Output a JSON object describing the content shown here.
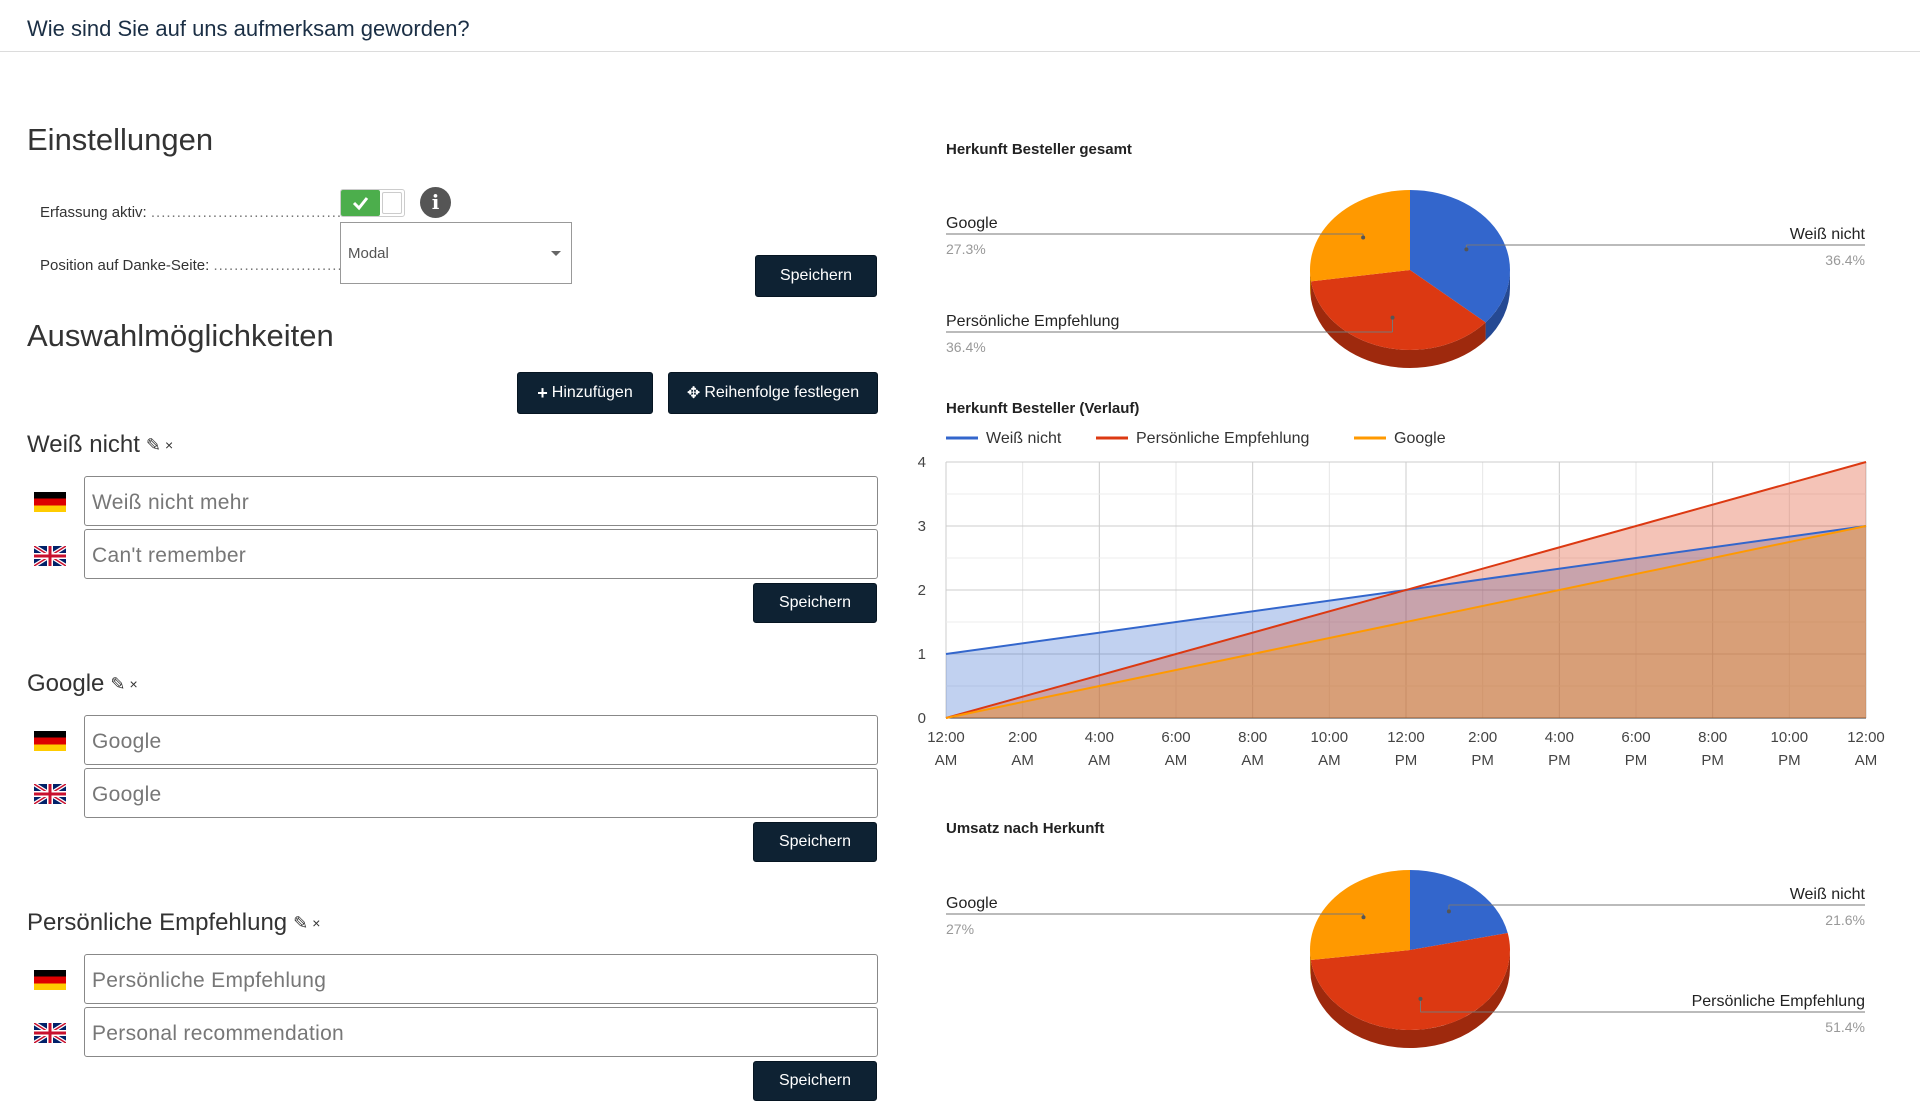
{
  "page": {
    "title": "Wie sind Sie auf uns aufmerksam geworden?"
  },
  "settings": {
    "heading": "Einstellungen",
    "capture_label": "Erfassung aktiv:",
    "capture_active": true,
    "position_label": "Position auf Danke-Seite:",
    "position_value": "Modal",
    "save_label": "Speichern"
  },
  "options": {
    "heading": "Auswahlmöglichkeiten",
    "add_label": "Hinzufügen",
    "order_label": "Reihenfolge festlegen",
    "items": [
      {
        "name": "Weiß nicht",
        "de": "Weiß nicht mehr",
        "en": "Can't remember",
        "save": "Speichern"
      },
      {
        "name": "Google",
        "de": "Google",
        "en": "Google",
        "save": "Speichern"
      },
      {
        "name": "Persönliche Empfehlung",
        "de": "Persönliche Empfehlung",
        "en": "Personal recommendation",
        "save": "Speichern"
      }
    ]
  },
  "icons": {
    "toggle": "check-icon",
    "info": "info-icon",
    "caret": "chevron-down-icon",
    "edit": "edit-icon",
    "remove": "close-icon",
    "add": "plus-icon",
    "move": "move-icon",
    "flag_de": "flag-germany-icon",
    "flag_en": "flag-uk-icon"
  },
  "colors": {
    "blue": "#3366cc",
    "red": "#dc3912",
    "orange": "#ff9900",
    "dark_button": "#0e2233",
    "toggle_green": "#4cae4c"
  },
  "chart_data": [
    {
      "type": "pie",
      "title": "Herkunft Besteller gesamt",
      "labels": [
        "Weiß nicht",
        "Persönliche Empfehlung",
        "Google"
      ],
      "values": [
        36.4,
        36.4,
        27.3
      ],
      "value_labels": [
        "36.4%",
        "36.4%",
        "27.3%"
      ],
      "colors": [
        "#3366cc",
        "#dc3912",
        "#ff9900"
      ]
    },
    {
      "type": "area",
      "title": "Herkunft Besteller (Verlauf)",
      "x": [
        "12:00 AM",
        "2:00 AM",
        "4:00 AM",
        "6:00 AM",
        "8:00 AM",
        "10:00 AM",
        "12:00 PM",
        "2:00 PM",
        "4:00 PM",
        "6:00 PM",
        "8:00 PM",
        "10:00 PM",
        "12:00 AM"
      ],
      "x_tick_lines": [
        [
          "12:00",
          "AM"
        ],
        [
          "2:00",
          "AM"
        ],
        [
          "4:00",
          "AM"
        ],
        [
          "6:00",
          "AM"
        ],
        [
          "8:00",
          "AM"
        ],
        [
          "10:00",
          "AM"
        ],
        [
          "12:00",
          "PM"
        ],
        [
          "2:00",
          "PM"
        ],
        [
          "4:00",
          "PM"
        ],
        [
          "6:00",
          "PM"
        ],
        [
          "8:00",
          "PM"
        ],
        [
          "10:00",
          "PM"
        ],
        [
          "12:00",
          "AM"
        ]
      ],
      "y_ticks": [
        "0",
        "1",
        "2",
        "3",
        "4"
      ],
      "ylim": [
        0,
        4
      ],
      "series": [
        {
          "name": "Weiß nicht",
          "start": 1,
          "end": 3,
          "color": "#3366cc"
        },
        {
          "name": "Persönliche Empfehlung",
          "start": 0,
          "end": 4,
          "color": "#dc3912"
        },
        {
          "name": "Google",
          "start": 0,
          "end": 3,
          "color": "#ff9900"
        }
      ],
      "legend": "top",
      "grid": true
    },
    {
      "type": "pie",
      "title": "Umsatz nach Herkunft",
      "labels": [
        "Weiß nicht",
        "Persönliche Empfehlung",
        "Google"
      ],
      "values": [
        21.6,
        51.4,
        27
      ],
      "value_labels": [
        "21.6%",
        "51.4%",
        "27%"
      ],
      "colors": [
        "#3366cc",
        "#dc3912",
        "#ff9900"
      ]
    }
  ]
}
